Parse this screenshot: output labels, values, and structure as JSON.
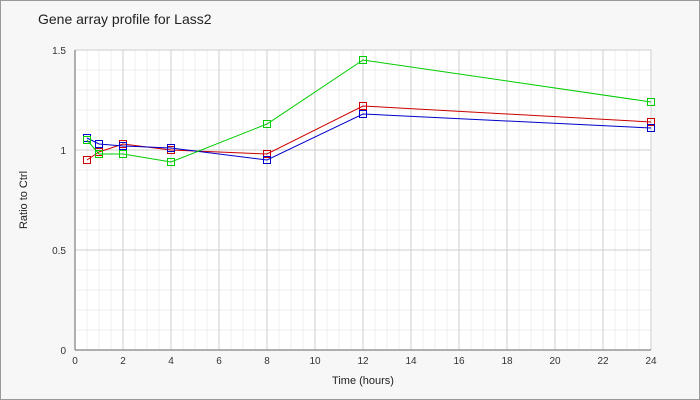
{
  "chart_data": {
    "type": "line",
    "title": "Gene array profile for Lass2",
    "xlabel": "Time (hours)",
    "ylabel": "Ratio to Ctrl",
    "xlim": [
      0,
      24
    ],
    "ylim": [
      0,
      1.5
    ],
    "x_ticks": [
      "0",
      "2",
      "4",
      "6",
      "8",
      "10",
      "12",
      "14",
      "16",
      "18",
      "20",
      "22",
      "24"
    ],
    "y_ticks": [
      "0",
      "0.5",
      "1",
      "1.5"
    ],
    "grid": true,
    "legend": "none",
    "marker": "square",
    "series": [
      {
        "color": "#cc0000",
        "points": [
          [
            0.5,
            0.95
          ],
          [
            1,
            0.99
          ],
          [
            2,
            1.03
          ],
          [
            4,
            1.0
          ],
          [
            8,
            0.98
          ],
          [
            12,
            1.22
          ],
          [
            24,
            1.14
          ]
        ]
      },
      {
        "color": "#0000cc",
        "points": [
          [
            0.5,
            1.06
          ],
          [
            1,
            1.03
          ],
          [
            2,
            1.02
          ],
          [
            4,
            1.01
          ],
          [
            8,
            0.95
          ],
          [
            12,
            1.18
          ],
          [
            24,
            1.11
          ]
        ]
      },
      {
        "color": "#00cc00",
        "points": [
          [
            0.5,
            1.05
          ],
          [
            1,
            0.98
          ],
          [
            2,
            0.98
          ],
          [
            4,
            0.94
          ],
          [
            8,
            1.13
          ],
          [
            12,
            1.45
          ],
          [
            24,
            1.24
          ]
        ]
      }
    ]
  }
}
